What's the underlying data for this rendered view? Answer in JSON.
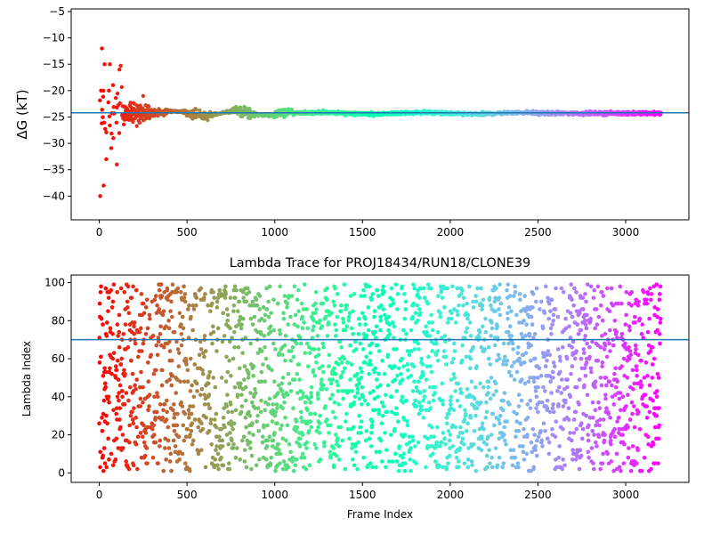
{
  "chart_data": [
    {
      "type": "scatter",
      "title": "",
      "xlabel": "",
      "ylabel": "ΔG (kT)",
      "xlim": [
        -160,
        3360
      ],
      "ylim": [
        -44.5,
        -4.5
      ],
      "x_ticks": [
        0,
        500,
        1000,
        1500,
        2000,
        2500,
        3000
      ],
      "y_ticks": [
        -40,
        -35,
        -30,
        -25,
        -20,
        -15,
        -10,
        -5
      ],
      "grid": false,
      "legend": "none",
      "colormap": "rainbow (red at low frame index, violet at high frame index)",
      "reference_line": {
        "value": -24.2,
        "orientation": "horizontal",
        "color": "#1f77b4"
      },
      "series_summary": {
        "description": "running free energy estimate per frame; scattered early, converging to about -24.3",
        "x_range": [
          0,
          3200
        ],
        "anchor_points": [
          {
            "x": 5,
            "y": -40
          },
          {
            "x": 10,
            "y": -20
          },
          {
            "x": 15,
            "y": -12
          },
          {
            "x": 25,
            "y": -38
          },
          {
            "x": 30,
            "y": -15
          },
          {
            "x": 40,
            "y": -33
          },
          {
            "x": 55,
            "y": -20
          },
          {
            "x": 60,
            "y": -15
          },
          {
            "x": 80,
            "y": -29
          },
          {
            "x": 100,
            "y": -34
          },
          {
            "x": 115,
            "y": -16
          },
          {
            "x": 140,
            "y": -23
          },
          {
            "x": 250,
            "y": -21
          },
          {
            "x": 500,
            "y": -24.5
          },
          {
            "x": 1000,
            "y": -24.8
          },
          {
            "x": 1500,
            "y": -24.2
          },
          {
            "x": 2000,
            "y": -24.2
          },
          {
            "x": 2500,
            "y": -24.3
          },
          {
            "x": 3000,
            "y": -24.2
          },
          {
            "x": 3200,
            "y": -24.2
          }
        ]
      }
    },
    {
      "type": "scatter",
      "title": "Lambda Trace for PROJ18434/RUN18/CLONE39",
      "xlabel": "Frame Index",
      "ylabel": "Lambda Index",
      "xlim": [
        -160,
        3360
      ],
      "ylim": [
        -5,
        104
      ],
      "x_ticks": [
        0,
        500,
        1000,
        1500,
        2000,
        2500,
        3000
      ],
      "y_ticks": [
        0,
        20,
        40,
        60,
        80,
        100
      ],
      "grid": false,
      "legend": "none",
      "colormap": "rainbow (red at low frame index, violet at high frame index)",
      "reference_line": {
        "value": 70,
        "orientation": "horizontal",
        "color": "#1f77b4"
      },
      "series_summary": {
        "description": "lambda index visited at each frame; roughly uniform over 1 to 99",
        "x_range": [
          0,
          3200
        ],
        "y_range": [
          1,
          99
        ]
      }
    }
  ]
}
